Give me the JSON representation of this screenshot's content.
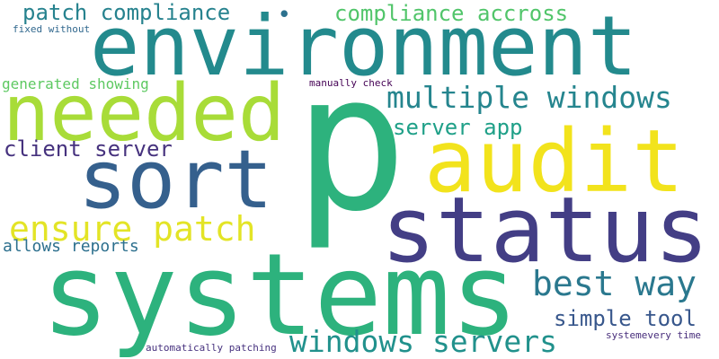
{
  "words": [
    {
      "text": "p",
      "color": "#2db27d"
    },
    {
      "text": "systems",
      "color": "#2db27d"
    },
    {
      "text": "environment",
      "color": "#238a8d"
    },
    {
      "text": "audit",
      "color": "#f2e31c"
    },
    {
      "text": "status",
      "color": "#433e85"
    },
    {
      "text": "needed",
      "color": "#a8dc38"
    },
    {
      "text": "sort",
      "color": "#35608d"
    },
    {
      "text": "multiple windows",
      "color": "#25858e"
    },
    {
      "text": "ensure patch",
      "color": "#e3e426"
    },
    {
      "text": "best way",
      "color": "#2a788e"
    },
    {
      "text": "windows servers",
      "color": "#21918c"
    },
    {
      "text": "patch compliance",
      "color": "#26828e"
    },
    {
      "text": "compliance accross",
      "color": "#51c56a"
    },
    {
      "text": "server app",
      "color": "#1fa088"
    },
    {
      "text": "client server",
      "color": "#46327e"
    },
    {
      "text": "simple tool",
      "color": "#38578c"
    },
    {
      "text": "allows reports",
      "color": "#2d708e"
    },
    {
      "text": "generated showing",
      "color": "#5ec962"
    },
    {
      "text": "fixed without",
      "color": "#31688e"
    },
    {
      "text": "manually check",
      "color": "#440154"
    },
    {
      "text": "automatically patching",
      "color": "#46317e"
    },
    {
      "text": "systemevery time",
      "color": "#472d7b"
    },
    {
      "text": "•",
      "color": "#2c718e"
    }
  ]
}
